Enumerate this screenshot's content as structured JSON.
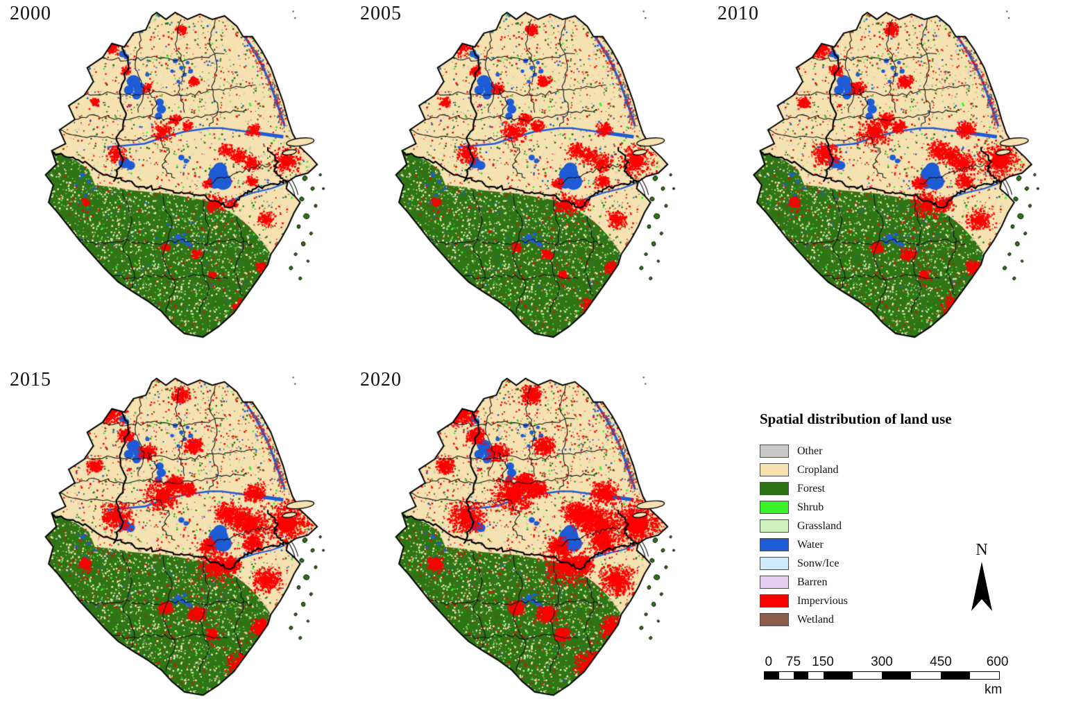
{
  "panels": [
    {
      "year": "2000"
    },
    {
      "year": "2005"
    },
    {
      "year": "2010"
    },
    {
      "year": "2015"
    },
    {
      "year": "2020"
    }
  ],
  "legend": {
    "title": "Spatial distribution of land use",
    "items": [
      {
        "label": "Other",
        "color": "#C8C8C8"
      },
      {
        "label": "Cropland",
        "color": "#F6E1B0"
      },
      {
        "label": "Forest",
        "color": "#2F7516"
      },
      {
        "label": "Shrub",
        "color": "#3BF32B"
      },
      {
        "label": "Grassland",
        "color": "#CDF2BE"
      },
      {
        "label": "Water",
        "color": "#1E5CD6"
      },
      {
        "label": "Sonw/Ice",
        "color": "#CDEBF9"
      },
      {
        "label": "Barren",
        "color": "#E6CEF2"
      },
      {
        "label": "Impervious",
        "color": "#FC0000"
      },
      {
        "label": "Wetland",
        "color": "#8A5C49"
      }
    ]
  },
  "north_arrow": {
    "label": "N"
  },
  "scale_bar": {
    "tick_labels": [
      "0",
      "75",
      "150",
      "300",
      "450",
      "600"
    ],
    "tick_km": [
      0,
      75,
      150,
      300,
      450,
      600
    ],
    "unit": "km",
    "total_km": 600
  },
  "map_colors": {
    "boundary": "#000000",
    "background": "#FFFFFF"
  },
  "render_hints": {
    "urban_growth_by_year": [
      1.0,
      1.18,
      1.4,
      1.65,
      1.95
    ]
  }
}
